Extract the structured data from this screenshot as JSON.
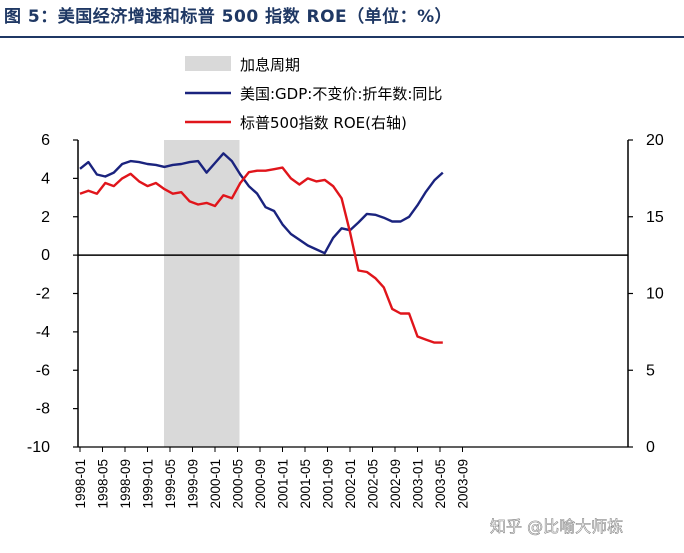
{
  "page": {
    "title": "图 5：美国经济增速和标普 500 指数 ROE（单位：%）",
    "watermark": "知乎 @比喻大师栋"
  },
  "chart_data": {
    "type": "line",
    "title": "图 5：美国经济增速和标普 500 指数 ROE（单位：%）",
    "x_labels": [
      "1998-01",
      "1998-05",
      "1998-09",
      "1999-01",
      "1999-05",
      "1999-09",
      "2000-01",
      "2000-05",
      "2000-09",
      "2001-01",
      "2001-05",
      "2001-09",
      "2002-01",
      "2002-05",
      "2002-09",
      "2003-01",
      "2003-05",
      "2003-09"
    ],
    "y_left": {
      "min": -10,
      "max": 6,
      "ticks": [
        -10,
        -8,
        -6,
        -4,
        -2,
        0,
        2,
        4,
        6
      ]
    },
    "y_right": {
      "min": 0,
      "max": 20,
      "ticks": [
        0,
        5,
        10,
        15,
        20
      ]
    },
    "shaded_region": {
      "label": "加息周期",
      "start": "1999-05",
      "end": "2000-05",
      "color": "#d9d9d9"
    },
    "series": [
      {
        "name": "美国:GDP:不变价:折年数:同比",
        "axis": "left",
        "color": "#1a237e",
        "points": [
          [
            0,
            4.5
          ],
          [
            1,
            4.85
          ],
          [
            2,
            4.2
          ],
          [
            3,
            4.1
          ],
          [
            4,
            4.3
          ],
          [
            5,
            4.75
          ],
          [
            6,
            4.9
          ],
          [
            7,
            4.85
          ],
          [
            8,
            4.75
          ],
          [
            9,
            4.7
          ],
          [
            10,
            4.6
          ],
          [
            11,
            4.7
          ],
          [
            12,
            4.75
          ],
          [
            13,
            4.85
          ],
          [
            14,
            4.9
          ],
          [
            15,
            4.3
          ],
          [
            16,
            4.8
          ],
          [
            17,
            5.3
          ],
          [
            18,
            4.9
          ],
          [
            19,
            4.2
          ],
          [
            20,
            3.6
          ],
          [
            21,
            3.2
          ],
          [
            22,
            2.5
          ],
          [
            23,
            2.3
          ],
          [
            24,
            1.6
          ],
          [
            25,
            1.1
          ],
          [
            26,
            0.8
          ],
          [
            27,
            0.5
          ],
          [
            28,
            0.3
          ],
          [
            29,
            0.1
          ],
          [
            30,
            0.9
          ],
          [
            31,
            1.4
          ],
          [
            32,
            1.3
          ],
          [
            33,
            1.7
          ],
          [
            34,
            2.15
          ],
          [
            35,
            2.1
          ],
          [
            36,
            1.95
          ],
          [
            37,
            1.75
          ],
          [
            38,
            1.75
          ],
          [
            39,
            2.0
          ],
          [
            40,
            2.6
          ],
          [
            41,
            3.3
          ],
          [
            42,
            3.9
          ],
          [
            43,
            4.3
          ]
        ]
      },
      {
        "name": "标普500指数 ROE(右轴)",
        "axis": "right",
        "color": "#e0151b",
        "points": [
          [
            0,
            16.5
          ],
          [
            1,
            16.7
          ],
          [
            2,
            16.5
          ],
          [
            3,
            17.2
          ],
          [
            4,
            17.0
          ],
          [
            5,
            17.5
          ],
          [
            6,
            17.8
          ],
          [
            7,
            17.3
          ],
          [
            8,
            17.0
          ],
          [
            9,
            17.2
          ],
          [
            10,
            16.8
          ],
          [
            11,
            16.5
          ],
          [
            12,
            16.6
          ],
          [
            13,
            16.0
          ],
          [
            14,
            15.8
          ],
          [
            15,
            15.9
          ],
          [
            16,
            15.7
          ],
          [
            17,
            16.4
          ],
          [
            18,
            16.2
          ],
          [
            19,
            17.2
          ],
          [
            20,
            17.9
          ],
          [
            21,
            18.0
          ],
          [
            22,
            18.0
          ],
          [
            23,
            18.1
          ],
          [
            24,
            18.2
          ],
          [
            25,
            17.5
          ],
          [
            26,
            17.1
          ],
          [
            27,
            17.5
          ],
          [
            28,
            17.3
          ],
          [
            29,
            17.4
          ],
          [
            30,
            17.0
          ],
          [
            31,
            16.2
          ],
          [
            32,
            14.0
          ],
          [
            33,
            11.5
          ],
          [
            34,
            11.4
          ],
          [
            35,
            11.0
          ],
          [
            36,
            10.4
          ],
          [
            37,
            9.0
          ],
          [
            38,
            8.7
          ],
          [
            39,
            8.7
          ],
          [
            40,
            7.2
          ],
          [
            41,
            7.0
          ],
          [
            42,
            6.8
          ],
          [
            43,
            6.8
          ]
        ]
      }
    ],
    "legend": [
      {
        "label": "加息周期",
        "kind": "patch",
        "color": "#d9d9d9"
      },
      {
        "label": "美国:GDP:不变价:折年数:同比",
        "kind": "line",
        "color": "#1a237e"
      },
      {
        "label": "标普500指数 ROE(右轴)",
        "kind": "line",
        "color": "#e0151b"
      }
    ]
  }
}
